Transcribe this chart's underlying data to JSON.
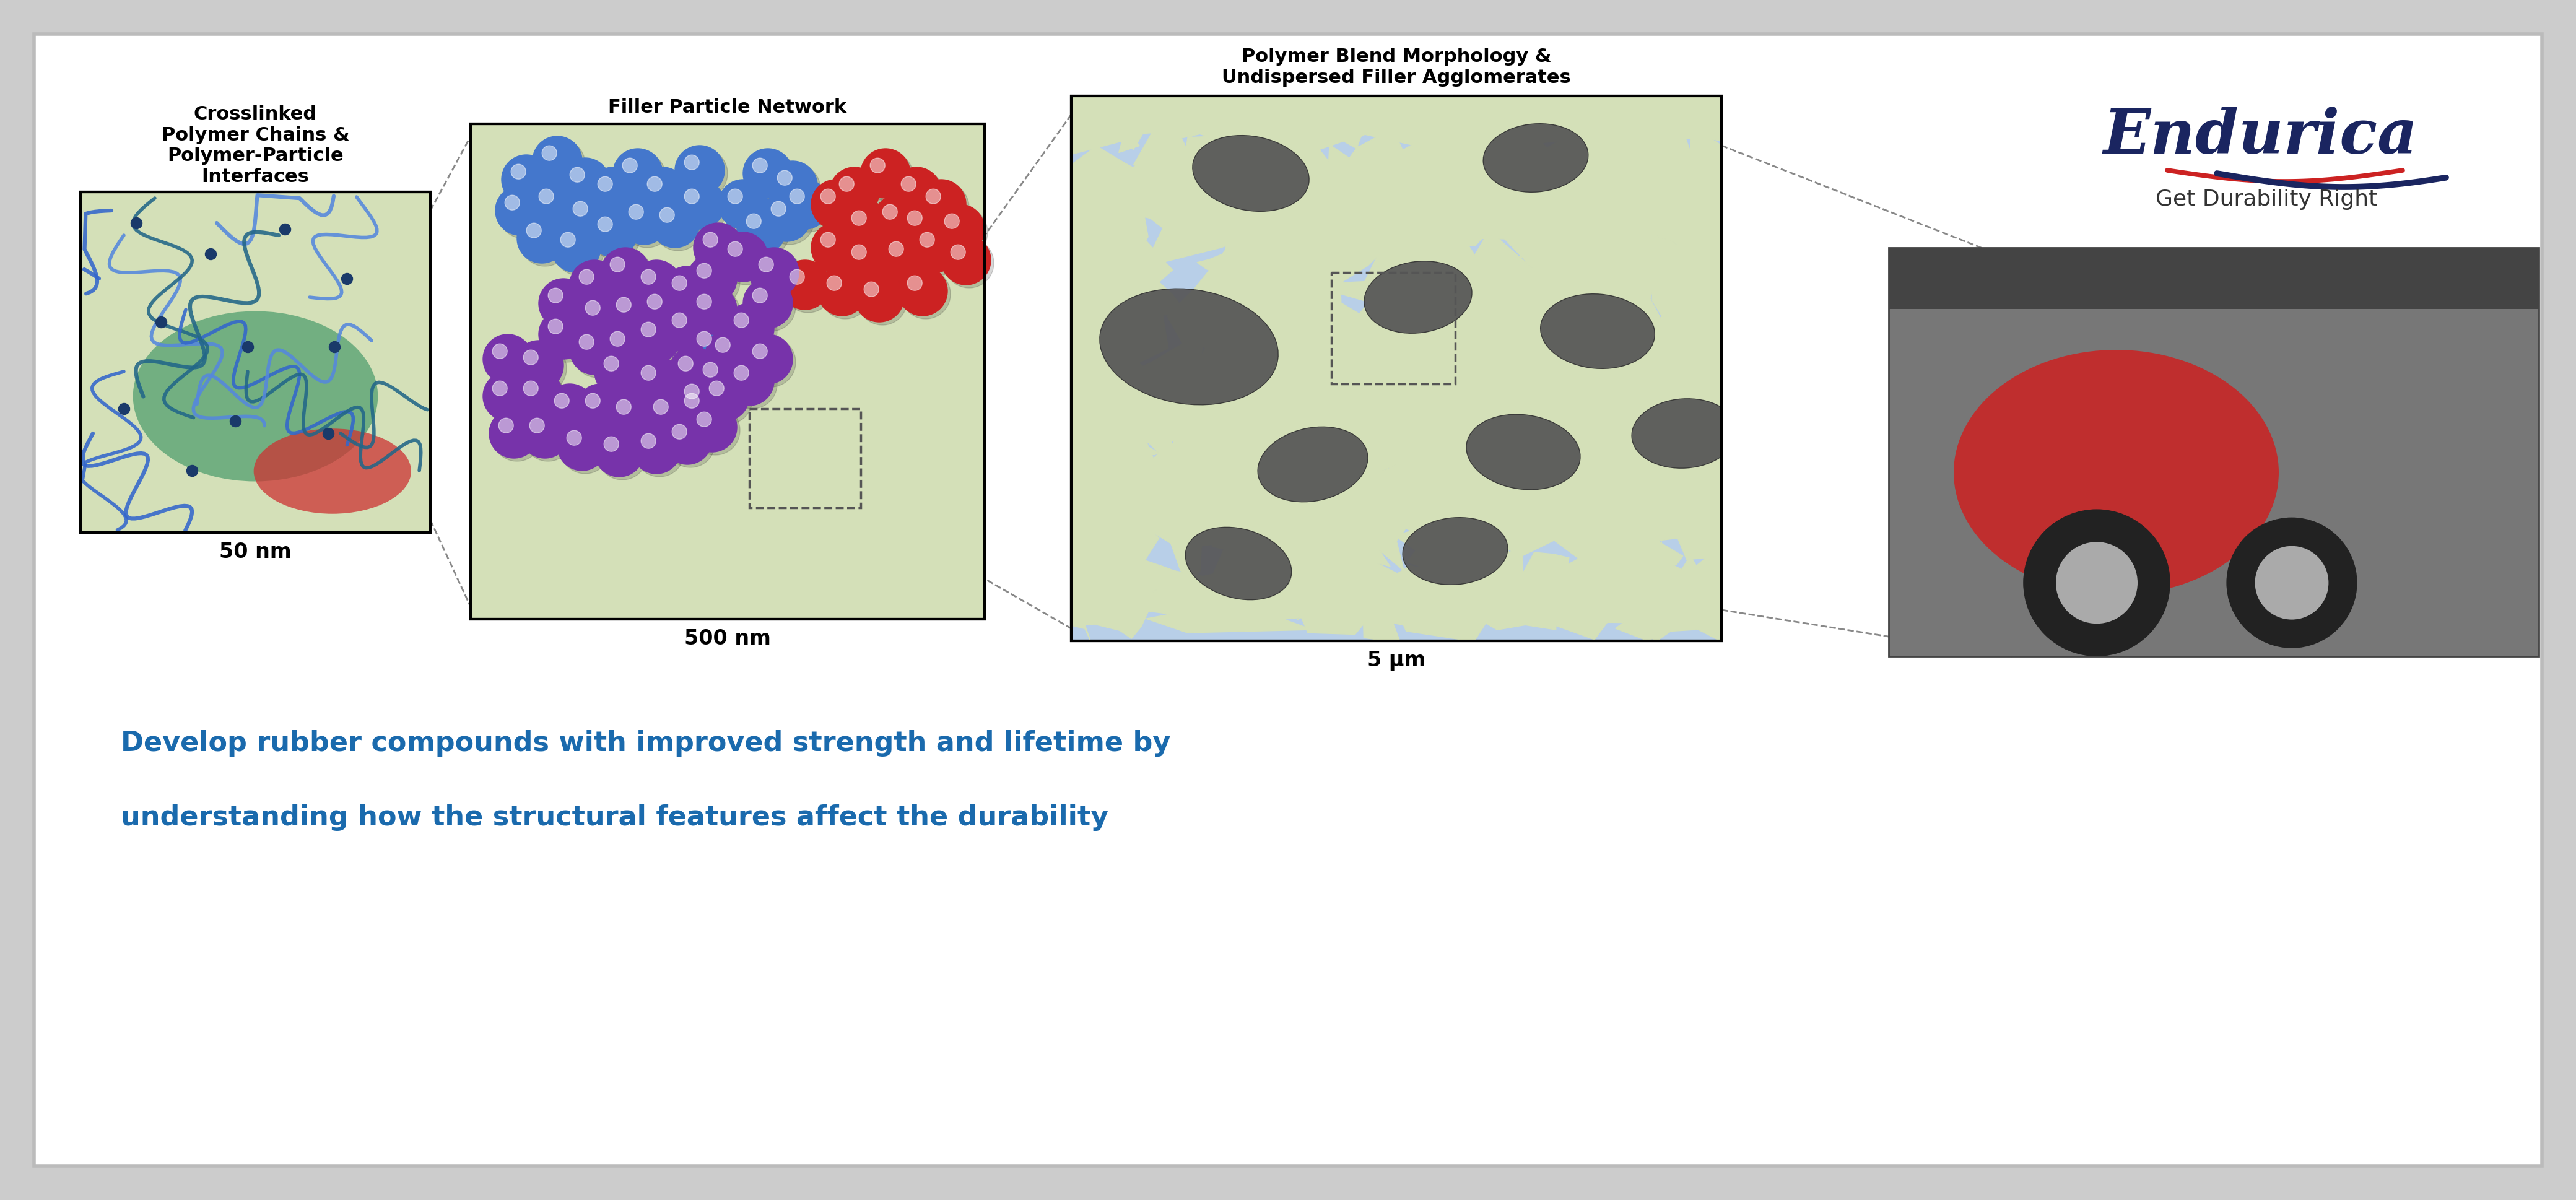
{
  "bg_color": "#cccccc",
  "inner_bg": "#ffffff",
  "panel1_bg": "#d4e0b8",
  "panel2_bg": "#d4e0b8",
  "panel3_blue": "#b8cfe8",
  "panel3_yellow": "#d4e0b8",
  "title1": "Crosslinked\nPolymer Chains &\nPolymer-Particle\nInterfaces",
  "title2": "Filler Particle Network",
  "title3": "Polymer Blend Morphology &\nUndispersed Filler Agglomerates",
  "label1": "50 nm",
  "label2": "500 nm",
  "label3": "5 μm",
  "bottom_line1": "Develop rubber compounds with improved strength and lifetime by",
  "bottom_line2": "understanding how the structural features affect the durability",
  "text_blue": "#1a6aad",
  "endurica_name": "Endurica",
  "endurica_tagline": "Get Durability Right",
  "endurica_color": "#1a2560",
  "red_color": "#cc2222",
  "blue_color": "#4477cc",
  "purple_color": "#7733aa",
  "dark_gray": "#555555",
  "chain_blue": "#3366cc",
  "chain_teal": "#226688",
  "chain_blue2": "#5588dd",
  "node_dark": "#1a3a6a",
  "green_blob": "#228855",
  "red_blob": "#cc3333"
}
